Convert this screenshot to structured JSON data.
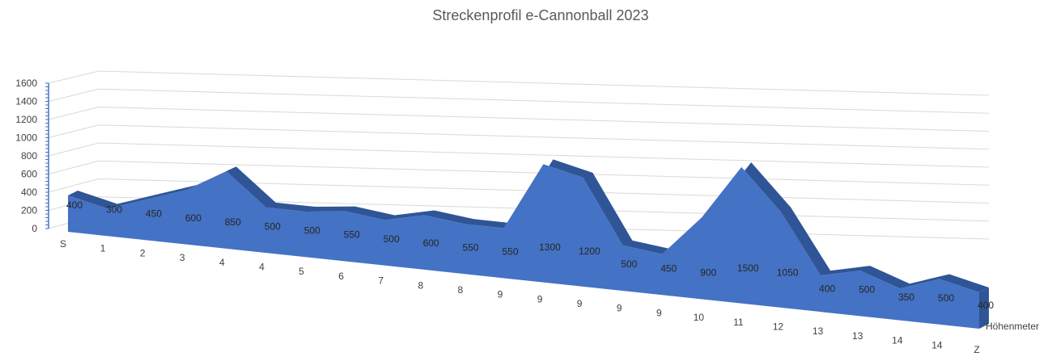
{
  "chart_data": {
    "type": "area",
    "title": "Streckenprofil e-Cannonball 2023",
    "categories": [
      "S",
      "1",
      "2",
      "3",
      "4",
      "4",
      "5",
      "6",
      "7",
      "8",
      "8",
      "9",
      "9",
      "9",
      "9",
      "9",
      "10",
      "11",
      "12",
      "13",
      "13",
      "14",
      "14",
      "Z"
    ],
    "series": [
      {
        "name": "Höhenmeter",
        "values": [
          400,
          300,
          450,
          600,
          850,
          500,
          500,
          550,
          500,
          600,
          550,
          550,
          1300,
          1200,
          500,
          450,
          900,
          1500,
          1050,
          400,
          500,
          350,
          500,
          400
        ]
      }
    ],
    "ylim": [
      0,
      1600
    ],
    "yticks": [
      0,
      200,
      400,
      600,
      800,
      1000,
      1200,
      1400,
      1600
    ],
    "grid": true,
    "view": "3d-area",
    "colors": {
      "front": "#4472c4",
      "top": "#2f5597",
      "grid": "#d9d9d9",
      "axis": "#4472c4"
    }
  }
}
